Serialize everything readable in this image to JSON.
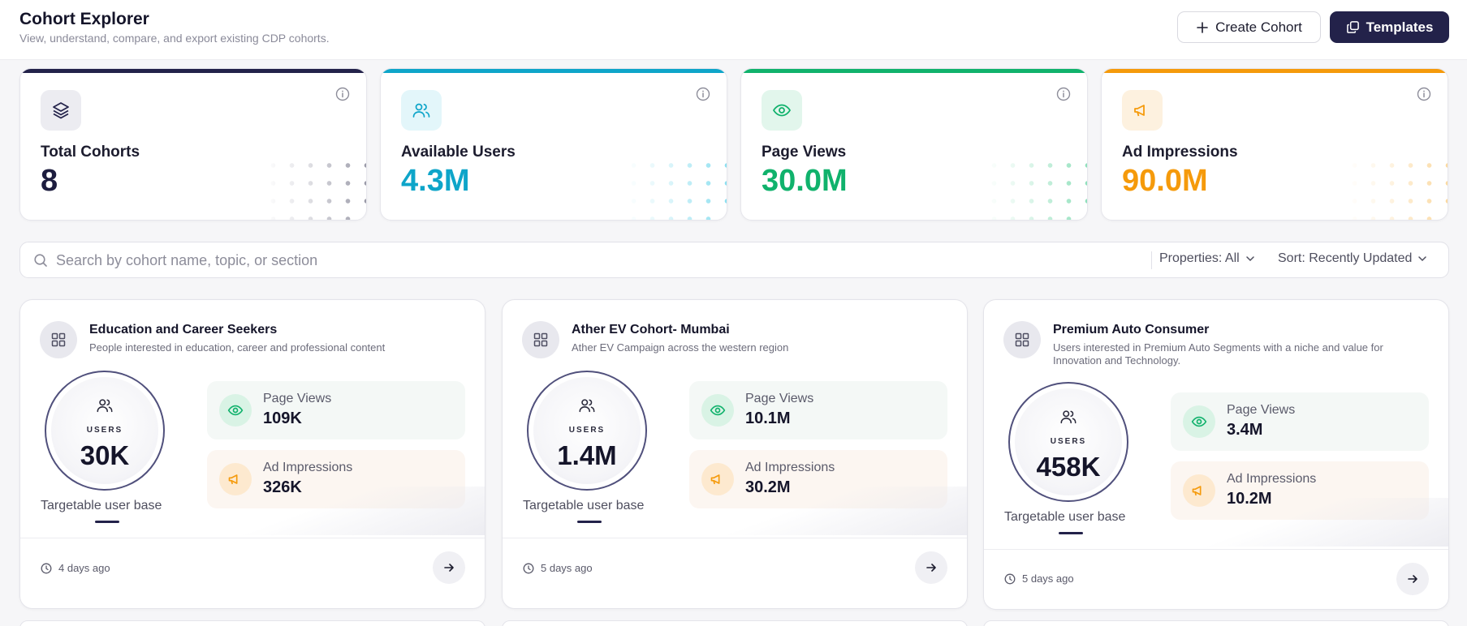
{
  "header": {
    "title": "Cohort Explorer",
    "subtitle": "View, understand, compare, and export existing CDP cohorts.",
    "create_label": "Create Cohort",
    "templates_label": "Templates"
  },
  "stats": [
    {
      "label": "Total Cohorts",
      "value": "8",
      "icon": "layers-icon",
      "accent": "#23224a"
    },
    {
      "label": "Available Users",
      "value": "4.3M",
      "icon": "users-icon",
      "accent": "#0ea5c9"
    },
    {
      "label": "Page Views",
      "value": "30.0M",
      "icon": "eye-icon",
      "accent": "#10b26c"
    },
    {
      "label": "Ad Impressions",
      "value": "90.0M",
      "icon": "megaphone-icon",
      "accent": "#f59a0b"
    }
  ],
  "search": {
    "placeholder": "Search by cohort name, topic, or section",
    "properties_label": "Properties: All",
    "sort_label": "Sort: Recently Updated"
  },
  "cohorts": [
    {
      "title": "Education and Career Seekers",
      "description": "People interested in education, career and professional content",
      "users_label": "USERS",
      "users": "30K",
      "targetable_label": "Targetable user base",
      "page_views_label": "Page Views",
      "page_views": "109K",
      "ad_impressions_label": "Ad Impressions",
      "ad_impressions": "326K",
      "updated": "4 days ago"
    },
    {
      "title": "Ather EV Cohort- Mumbai",
      "description": "Ather EV Campaign across the western region",
      "users_label": "USERS",
      "users": "1.4M",
      "targetable_label": "Targetable user base",
      "page_views_label": "Page Views",
      "page_views": "10.1M",
      "ad_impressions_label": "Ad Impressions",
      "ad_impressions": "30.2M",
      "updated": "5 days ago"
    },
    {
      "title": "Premium Auto Consumer",
      "description": "Users interested in Premium Auto Segments with a niche and value for Innovation and Technology.",
      "users_label": "USERS",
      "users": "458K",
      "targetable_label": "Targetable user base",
      "page_views_label": "Page Views",
      "page_views": "3.4M",
      "ad_impressions_label": "Ad Impressions",
      "ad_impressions": "10.2M",
      "updated": "5 days ago"
    }
  ],
  "colors": {
    "primary": "#23224a",
    "green": "#10b26c",
    "orange": "#f59a0b",
    "cyan": "#0ea5c9"
  }
}
